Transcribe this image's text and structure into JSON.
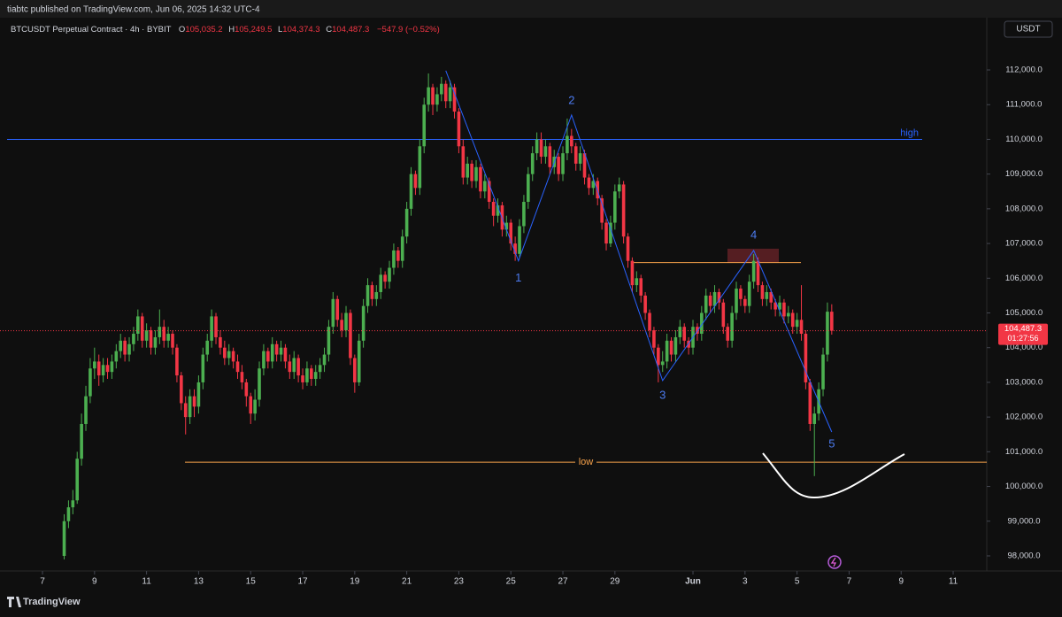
{
  "header": {
    "published": "tiabtc published on TradingView.com, Jun 06, 2025 14:32 UTC-4"
  },
  "footer": {
    "brand": "TradingView"
  },
  "chart_data": {
    "type": "candlestick",
    "symbol": "BTCUSDT Perpetual Contract · 4h · BYBIT",
    "ohlc_legend": [
      {
        "key": "O",
        "text": "105,035.2"
      },
      {
        "key": "H",
        "text": "105,249.5"
      },
      {
        "key": "L",
        "text": "104,374.3"
      },
      {
        "key": "C",
        "text": "104,487.3"
      }
    ],
    "change": "−547.9 (−0.52%)",
    "currency": "USDT",
    "last_price_label": "104,487.3",
    "countdown": "01:27:56",
    "up_color": "#4caf50",
    "down_color": "#f23645",
    "grid": false,
    "xlim": [
      -39.2,
      871
    ],
    "ylim": [
      97566,
      113454
    ],
    "xticks": [
      {
        "value": 0,
        "label": "7"
      },
      {
        "value": 48,
        "label": "9"
      },
      {
        "value": 96,
        "label": "11"
      },
      {
        "value": 144,
        "label": "13"
      },
      {
        "value": 192,
        "label": "15"
      },
      {
        "value": 240,
        "label": "17"
      },
      {
        "value": 288,
        "label": "19"
      },
      {
        "value": 336,
        "label": "21"
      },
      {
        "value": 384,
        "label": "23"
      },
      {
        "value": 432,
        "label": "25"
      },
      {
        "value": 480,
        "label": "27"
      },
      {
        "value": 528,
        "label": "29"
      },
      {
        "value": 600,
        "label": "Jun"
      },
      {
        "value": 648,
        "label": "3"
      },
      {
        "value": 696,
        "label": "5"
      },
      {
        "value": 744,
        "label": "7"
      },
      {
        "value": 792,
        "label": "9"
      },
      {
        "value": 840,
        "label": "11"
      }
    ],
    "yticks": [
      {
        "value": 98000,
        "label": "98,000.0"
      },
      {
        "value": 99000,
        "label": "99,000.0"
      },
      {
        "value": 100000,
        "label": "100,000.0"
      },
      {
        "value": 101000,
        "label": "101,000.0"
      },
      {
        "value": 102000,
        "label": "102,000.0"
      },
      {
        "value": 103000,
        "label": "103,000.0"
      },
      {
        "value": 104000,
        "label": "104,000.0"
      },
      {
        "value": 105000,
        "label": "105,000.0"
      },
      {
        "value": 106000,
        "label": "106,000.0"
      },
      {
        "value": 107000,
        "label": "107,000.0"
      },
      {
        "value": 108000,
        "label": "108,000.0"
      },
      {
        "value": 109000,
        "label": "109,000.0"
      },
      {
        "value": 110000,
        "label": "110,000.0"
      },
      {
        "value": 111000,
        "label": "111,000.0"
      },
      {
        "value": 112000,
        "label": "112,000.0"
      }
    ],
    "levels": [
      {
        "label": "high",
        "value": 110000,
        "color": "#2962ff"
      },
      {
        "label": "low",
        "value": 100700,
        "color": "#f7a24b"
      }
    ],
    "resistance": 106450,
    "zone": [
      106450,
      106850
    ],
    "wave": {
      "labels": [
        null,
        "1",
        "2",
        "3",
        "4",
        "5"
      ],
      "x": [
        372,
        439,
        488,
        572,
        656,
        728
      ],
      "y": [
        111980,
        106500,
        110700,
        103050,
        106800,
        101570
      ],
      "color": "#2962ff"
    },
    "x": [
      20,
      24,
      28,
      32,
      36,
      40,
      44,
      48,
      52,
      56,
      60,
      64,
      68,
      72,
      76,
      80,
      84,
      88,
      92,
      96,
      100,
      104,
      108,
      112,
      116,
      120,
      124,
      128,
      132,
      136,
      140,
      144,
      148,
      152,
      156,
      160,
      164,
      168,
      172,
      176,
      180,
      184,
      188,
      192,
      196,
      200,
      204,
      208,
      212,
      216,
      220,
      224,
      228,
      232,
      236,
      240,
      244,
      248,
      252,
      256,
      260,
      264,
      268,
      272,
      276,
      280,
      284,
      288,
      292,
      296,
      300,
      304,
      308,
      312,
      316,
      320,
      324,
      328,
      332,
      336,
      340,
      344,
      348,
      352,
      356,
      360,
      364,
      368,
      372,
      376,
      380,
      384,
      388,
      392,
      396,
      400,
      404,
      408,
      412,
      416,
      420,
      424,
      428,
      432,
      436,
      440,
      444,
      448,
      452,
      456,
      460,
      464,
      468,
      472,
      476,
      480,
      484,
      488,
      492,
      496,
      500,
      504,
      508,
      512,
      516,
      520,
      524,
      528,
      532,
      536,
      540,
      544,
      548,
      552,
      556,
      560,
      564,
      568,
      572,
      576,
      580,
      584,
      588,
      592,
      596,
      600,
      604,
      608,
      612,
      616,
      620,
      624,
      628,
      632,
      636,
      640,
      644,
      648,
      652,
      656,
      660,
      664,
      668,
      672,
      676,
      680,
      684,
      688,
      692,
      696,
      700,
      704,
      708,
      712,
      716,
      720,
      724,
      728
    ],
    "open": [
      98000,
      99000,
      99400,
      99600,
      100800,
      101800,
      102600,
      103400,
      103600,
      103200,
      103500,
      103300,
      103600,
      103900,
      104200,
      103800,
      104100,
      104400,
      104900,
      104200,
      104500,
      104000,
      104300,
      104600,
      104200,
      104400,
      104000,
      103200,
      102400,
      102000,
      102600,
      102300,
      103000,
      103800,
      104200,
      104900,
      104300,
      104000,
      103700,
      103900,
      103600,
      103300,
      103000,
      102600,
      102100,
      102500,
      103400,
      103900,
      103600,
      104100,
      103800,
      104000,
      103600,
      103300,
      103700,
      103200,
      103000,
      103400,
      103100,
      103300,
      103500,
      103800,
      104600,
      105400,
      104800,
      104500,
      105000,
      103700,
      103000,
      104200,
      105200,
      105800,
      105400,
      105600,
      106100,
      105900,
      106300,
      106800,
      106500,
      107200,
      108000,
      109000,
      108600,
      109800,
      111000,
      111500,
      111000,
      111300,
      111600,
      111100,
      111500,
      110800,
      109800,
      108900,
      109300,
      108800,
      109200,
      108500,
      108800,
      108200,
      107800,
      108100,
      107400,
      107600,
      107000,
      106700,
      107500,
      108200,
      109000,
      109600,
      110000,
      109500,
      109800,
      109200,
      109500,
      109000,
      109600,
      110100,
      109800,
      109300,
      109600,
      108900,
      108600,
      108800,
      108300,
      107600,
      107000,
      107600,
      108500,
      108700,
      107200,
      106500,
      105800,
      106000,
      105500,
      105000,
      104500,
      104000,
      103500,
      103600,
      104200,
      103800,
      104300,
      104600,
      104200,
      104000,
      104600,
      104400,
      105000,
      105500,
      105200,
      105600,
      105300,
      104600,
      104200,
      105000,
      105700,
      105400,
      105200,
      105900,
      106500,
      105800,
      105400,
      105600,
      105300,
      105100,
      105300,
      104900,
      105000,
      104600,
      104800,
      104400,
      103000,
      101800,
      102100,
      102800,
      103800,
      105035.2
    ],
    "high": [
      99200,
      99600,
      99900,
      101000,
      102100,
      102900,
      103700,
      104000,
      103800,
      103700,
      103700,
      103800,
      104100,
      104400,
      104300,
      104300,
      104600,
      105100,
      105000,
      104700,
      104600,
      104500,
      105100,
      104800,
      104600,
      104500,
      104100,
      103300,
      102600,
      102800,
      102800,
      103200,
      104000,
      104400,
      105100,
      105000,
      104500,
      104200,
      104100,
      104000,
      103800,
      103500,
      103100,
      102700,
      102800,
      103600,
      104100,
      104000,
      104300,
      104200,
      104200,
      104100,
      103800,
      103900,
      103800,
      103400,
      103600,
      103500,
      103500,
      103700,
      104000,
      104800,
      105600,
      105500,
      105000,
      105200,
      105100,
      103800,
      104400,
      105400,
      106000,
      105900,
      105800,
      106300,
      106200,
      106500,
      107000,
      106900,
      107400,
      108200,
      109200,
      109100,
      110000,
      111200,
      111900,
      111600,
      111500,
      111800,
      111700,
      111700,
      111600,
      110900,
      110000,
      109500,
      109400,
      109400,
      109300,
      109000,
      108900,
      108300,
      108300,
      108200,
      107800,
      107700,
      107200,
      107700,
      108400,
      109200,
      109800,
      110200,
      110200,
      110000,
      109900,
      109700,
      109600,
      109800,
      110600,
      110300,
      109900,
      109800,
      109700,
      109000,
      109000,
      108900,
      108400,
      107700,
      107800,
      108700,
      108900,
      108800,
      107300,
      106600,
      106200,
      106100,
      105600,
      105100,
      104600,
      104100,
      103900,
      104400,
      104300,
      104500,
      104800,
      104700,
      104300,
      104800,
      104700,
      105200,
      105700,
      105600,
      105800,
      105700,
      105400,
      104700,
      105200,
      105900,
      105800,
      105500,
      106100,
      106700,
      106600,
      105900,
      105800,
      105700,
      105400,
      105500,
      105400,
      105200,
      105100,
      105000,
      105800,
      104500,
      103100,
      102300,
      103000,
      104000,
      105300,
      105249.5
    ],
    "low": [
      97900,
      98800,
      99200,
      99500,
      100600,
      101600,
      102400,
      103100,
      102900,
      103000,
      103100,
      103100,
      103400,
      103700,
      103600,
      103600,
      103900,
      104200,
      104000,
      104000,
      103800,
      103800,
      104100,
      104000,
      104000,
      103800,
      103000,
      102200,
      101500,
      101800,
      102000,
      102100,
      102800,
      103600,
      104000,
      104100,
      103800,
      103500,
      103500,
      103400,
      103100,
      102800,
      102300,
      101800,
      101900,
      102300,
      103200,
      103400,
      103400,
      103600,
      103600,
      103400,
      103100,
      103100,
      103000,
      102800,
      102900,
      102900,
      102900,
      103100,
      103300,
      103600,
      104400,
      104600,
      104300,
      104300,
      103500,
      102700,
      102900,
      104000,
      105000,
      105200,
      105200,
      105400,
      105700,
      105700,
      106100,
      106300,
      106300,
      107000,
      107800,
      108400,
      108400,
      109600,
      110800,
      110700,
      110800,
      111100,
      110900,
      110900,
      110600,
      109600,
      108700,
      108700,
      108600,
      108600,
      108300,
      108300,
      108000,
      107500,
      107600,
      107200,
      107200,
      106800,
      106500,
      106600,
      107300,
      108000,
      108800,
      109400,
      109300,
      109300,
      109000,
      109000,
      108800,
      108800,
      109400,
      109600,
      109100,
      109100,
      108700,
      108400,
      108400,
      108100,
      107400,
      106800,
      106900,
      107400,
      108300,
      107000,
      106300,
      105600,
      105600,
      105300,
      104800,
      104300,
      103800,
      103000,
      103300,
      103400,
      103600,
      103600,
      104100,
      104000,
      103800,
      103800,
      104200,
      104200,
      104800,
      105000,
      105000,
      105100,
      104400,
      104000,
      104000,
      104800,
      105200,
      105000,
      105000,
      105700,
      105600,
      105200,
      105200,
      105100,
      104900,
      104900,
      104700,
      104700,
      104400,
      104400,
      104200,
      102800,
      101600,
      100300,
      101900,
      102600,
      103600,
      104374.3
    ],
    "close": [
      99000,
      99400,
      99600,
      100800,
      101800,
      102600,
      103400,
      103600,
      103200,
      103500,
      103300,
      103600,
      103900,
      104200,
      103800,
      104100,
      104400,
      104900,
      104200,
      104500,
      104000,
      104300,
      104600,
      104200,
      104400,
      104000,
      103200,
      102400,
      102000,
      102600,
      102300,
      103000,
      103800,
      104200,
      104900,
      104300,
      104000,
      103700,
      103900,
      103600,
      103300,
      103000,
      102600,
      102100,
      102500,
      103400,
      103900,
      103600,
      104100,
      103800,
      104000,
      103600,
      103300,
      103700,
      103200,
      103000,
      103400,
      103100,
      103300,
      103500,
      103800,
      104600,
      105400,
      104800,
      104500,
      105000,
      103700,
      103000,
      104200,
      105200,
      105800,
      105400,
      105600,
      106100,
      105900,
      106300,
      106800,
      106500,
      107200,
      108000,
      109000,
      108600,
      109800,
      111000,
      111500,
      111000,
      111300,
      111600,
      111100,
      111500,
      110800,
      109800,
      108900,
      109300,
      108800,
      109200,
      108500,
      108800,
      108200,
      107800,
      108100,
      107400,
      107600,
      107000,
      106700,
      107500,
      108200,
      109000,
      109600,
      110000,
      109500,
      109800,
      109200,
      109500,
      109000,
      109600,
      110100,
      109800,
      109300,
      109600,
      108900,
      108600,
      108800,
      108300,
      107600,
      107000,
      107600,
      108500,
      108700,
      107200,
      106500,
      105800,
      106000,
      105500,
      105000,
      104500,
      104000,
      103500,
      103600,
      104200,
      103800,
      104300,
      104600,
      104200,
      104000,
      104600,
      104400,
      105000,
      105500,
      105200,
      105600,
      105300,
      104600,
      104200,
      105000,
      105700,
      105400,
      105200,
      105900,
      106500,
      105800,
      105400,
      105600,
      105300,
      105100,
      105300,
      104900,
      105000,
      104600,
      104800,
      104400,
      103000,
      101800,
      102100,
      102800,
      103800,
      105035.2,
      104487.3
    ]
  }
}
